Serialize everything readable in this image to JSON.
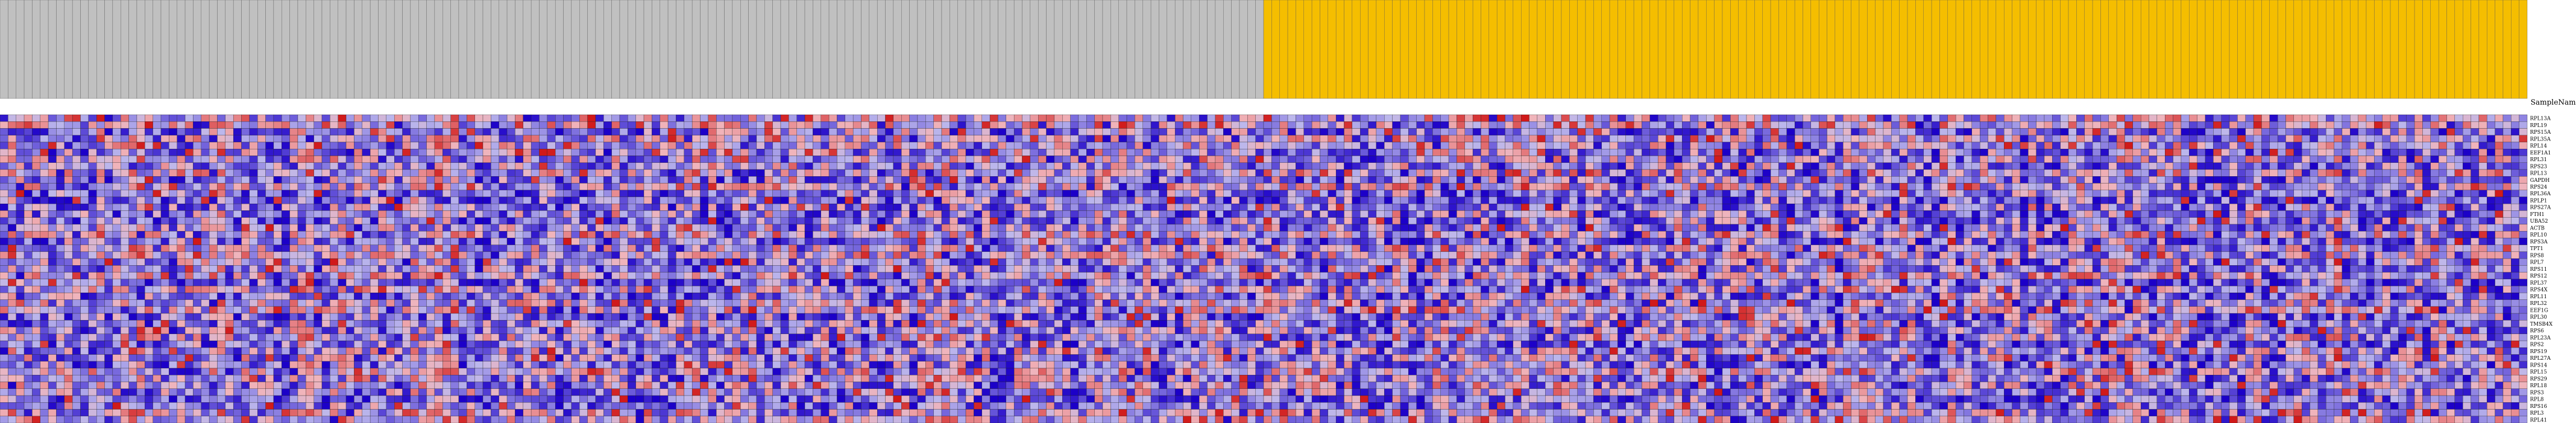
{
  "chart_data": {
    "type": "heatmap",
    "title": "",
    "row_header_label": "SampleName",
    "groups": [
      {
        "name": "",
        "color": "#c0c0c0",
        "count": 157
      },
      {
        "name": "",
        "color": "#f5be00",
        "count": 157
      }
    ],
    "rows": [
      "RPL13A",
      "RPL19",
      "RPS15A",
      "RPL35A",
      "RPL14",
      "EEF1A1",
      "RPL31",
      "RPS23",
      "RPL13",
      "GAPDH",
      "RPS24",
      "RPL36A",
      "RPLP1",
      "RPS27A",
      "FTH1",
      "UBA52",
      "ACTB",
      "RPL10",
      "RPS3A",
      "TPT1",
      "RPS8",
      "RPL7",
      "RPS11",
      "RPS12",
      "RPL37",
      "RPS4X",
      "RPL11",
      "RPL32",
      "EEF1G",
      "RPL30",
      "TMSB4X",
      "RPS6",
      "RPL23A",
      "RPS2",
      "RPS19",
      "RPL27A",
      "RPS14",
      "RPL15",
      "RPS29",
      "RPL18",
      "RPS3",
      "RPL8",
      "RPS16",
      "RPL3",
      "RPL41"
    ],
    "n_columns": 314,
    "color_scale": {
      "low": "#1c00c8",
      "mid_low": "#bcb7ec",
      "mid_high": "#f0b4bb",
      "high": "#d01818"
    },
    "legend": "none",
    "grid": true
  }
}
